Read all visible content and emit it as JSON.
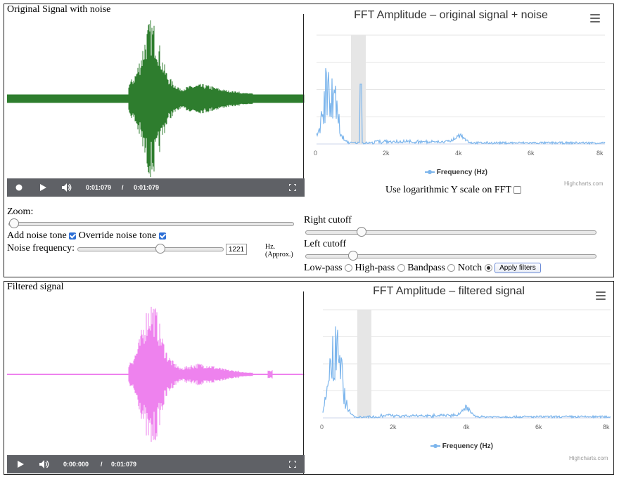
{
  "top": {
    "title": "Original Signal with noise",
    "player": {
      "current": "0:01:079",
      "sep": "/",
      "total": "0:01:079"
    },
    "fft": {
      "title": "FFT Amplitude – original signal + noise",
      "legend": "Frequency (Hz)",
      "credit": "Highcharts.com",
      "x_ticks": [
        "0",
        "2k",
        "4k",
        "6k",
        "8k"
      ]
    },
    "log_label": "Use logarithmic Y scale on FFT",
    "zoom_label": "Zoom:",
    "add_noise_label": "Add noise tone",
    "override_noise_label": "Override noise tone",
    "noise_freq_label": "Noise frequency:",
    "noise_freq_value": "1221",
    "noise_freq_fraction": 0.56,
    "hz_label": "Hz.",
    "approx_label": "(Approx.)",
    "right_cutoff_label": "Right cutoff",
    "right_cutoff_fraction": 0.18,
    "left_cutoff_label": "Left cutoff",
    "left_cutoff_fraction": 0.15,
    "filters": {
      "lowpass": "Low-pass",
      "highpass": "High-pass",
      "bandpass": "Bandpass",
      "notch": "Notch",
      "apply": "Apply filters"
    }
  },
  "bottom": {
    "title": "Filtered signal",
    "player": {
      "current": "0:00:000",
      "sep": "/",
      "total": "0:01:079"
    },
    "fft": {
      "title": "FFT Amplitude – filtered signal",
      "legend": "Frequency (Hz)",
      "credit": "Highcharts.com",
      "x_ticks": [
        "0",
        "2k",
        "4k",
        "6k",
        "8k"
      ]
    }
  },
  "colors": {
    "wave_original": "#2e7d2e",
    "wave_filtered": "#ee82ee",
    "fft_line": "#7cb5ec",
    "band": "#e6e6e6",
    "player_bg": "#5f6166"
  }
}
